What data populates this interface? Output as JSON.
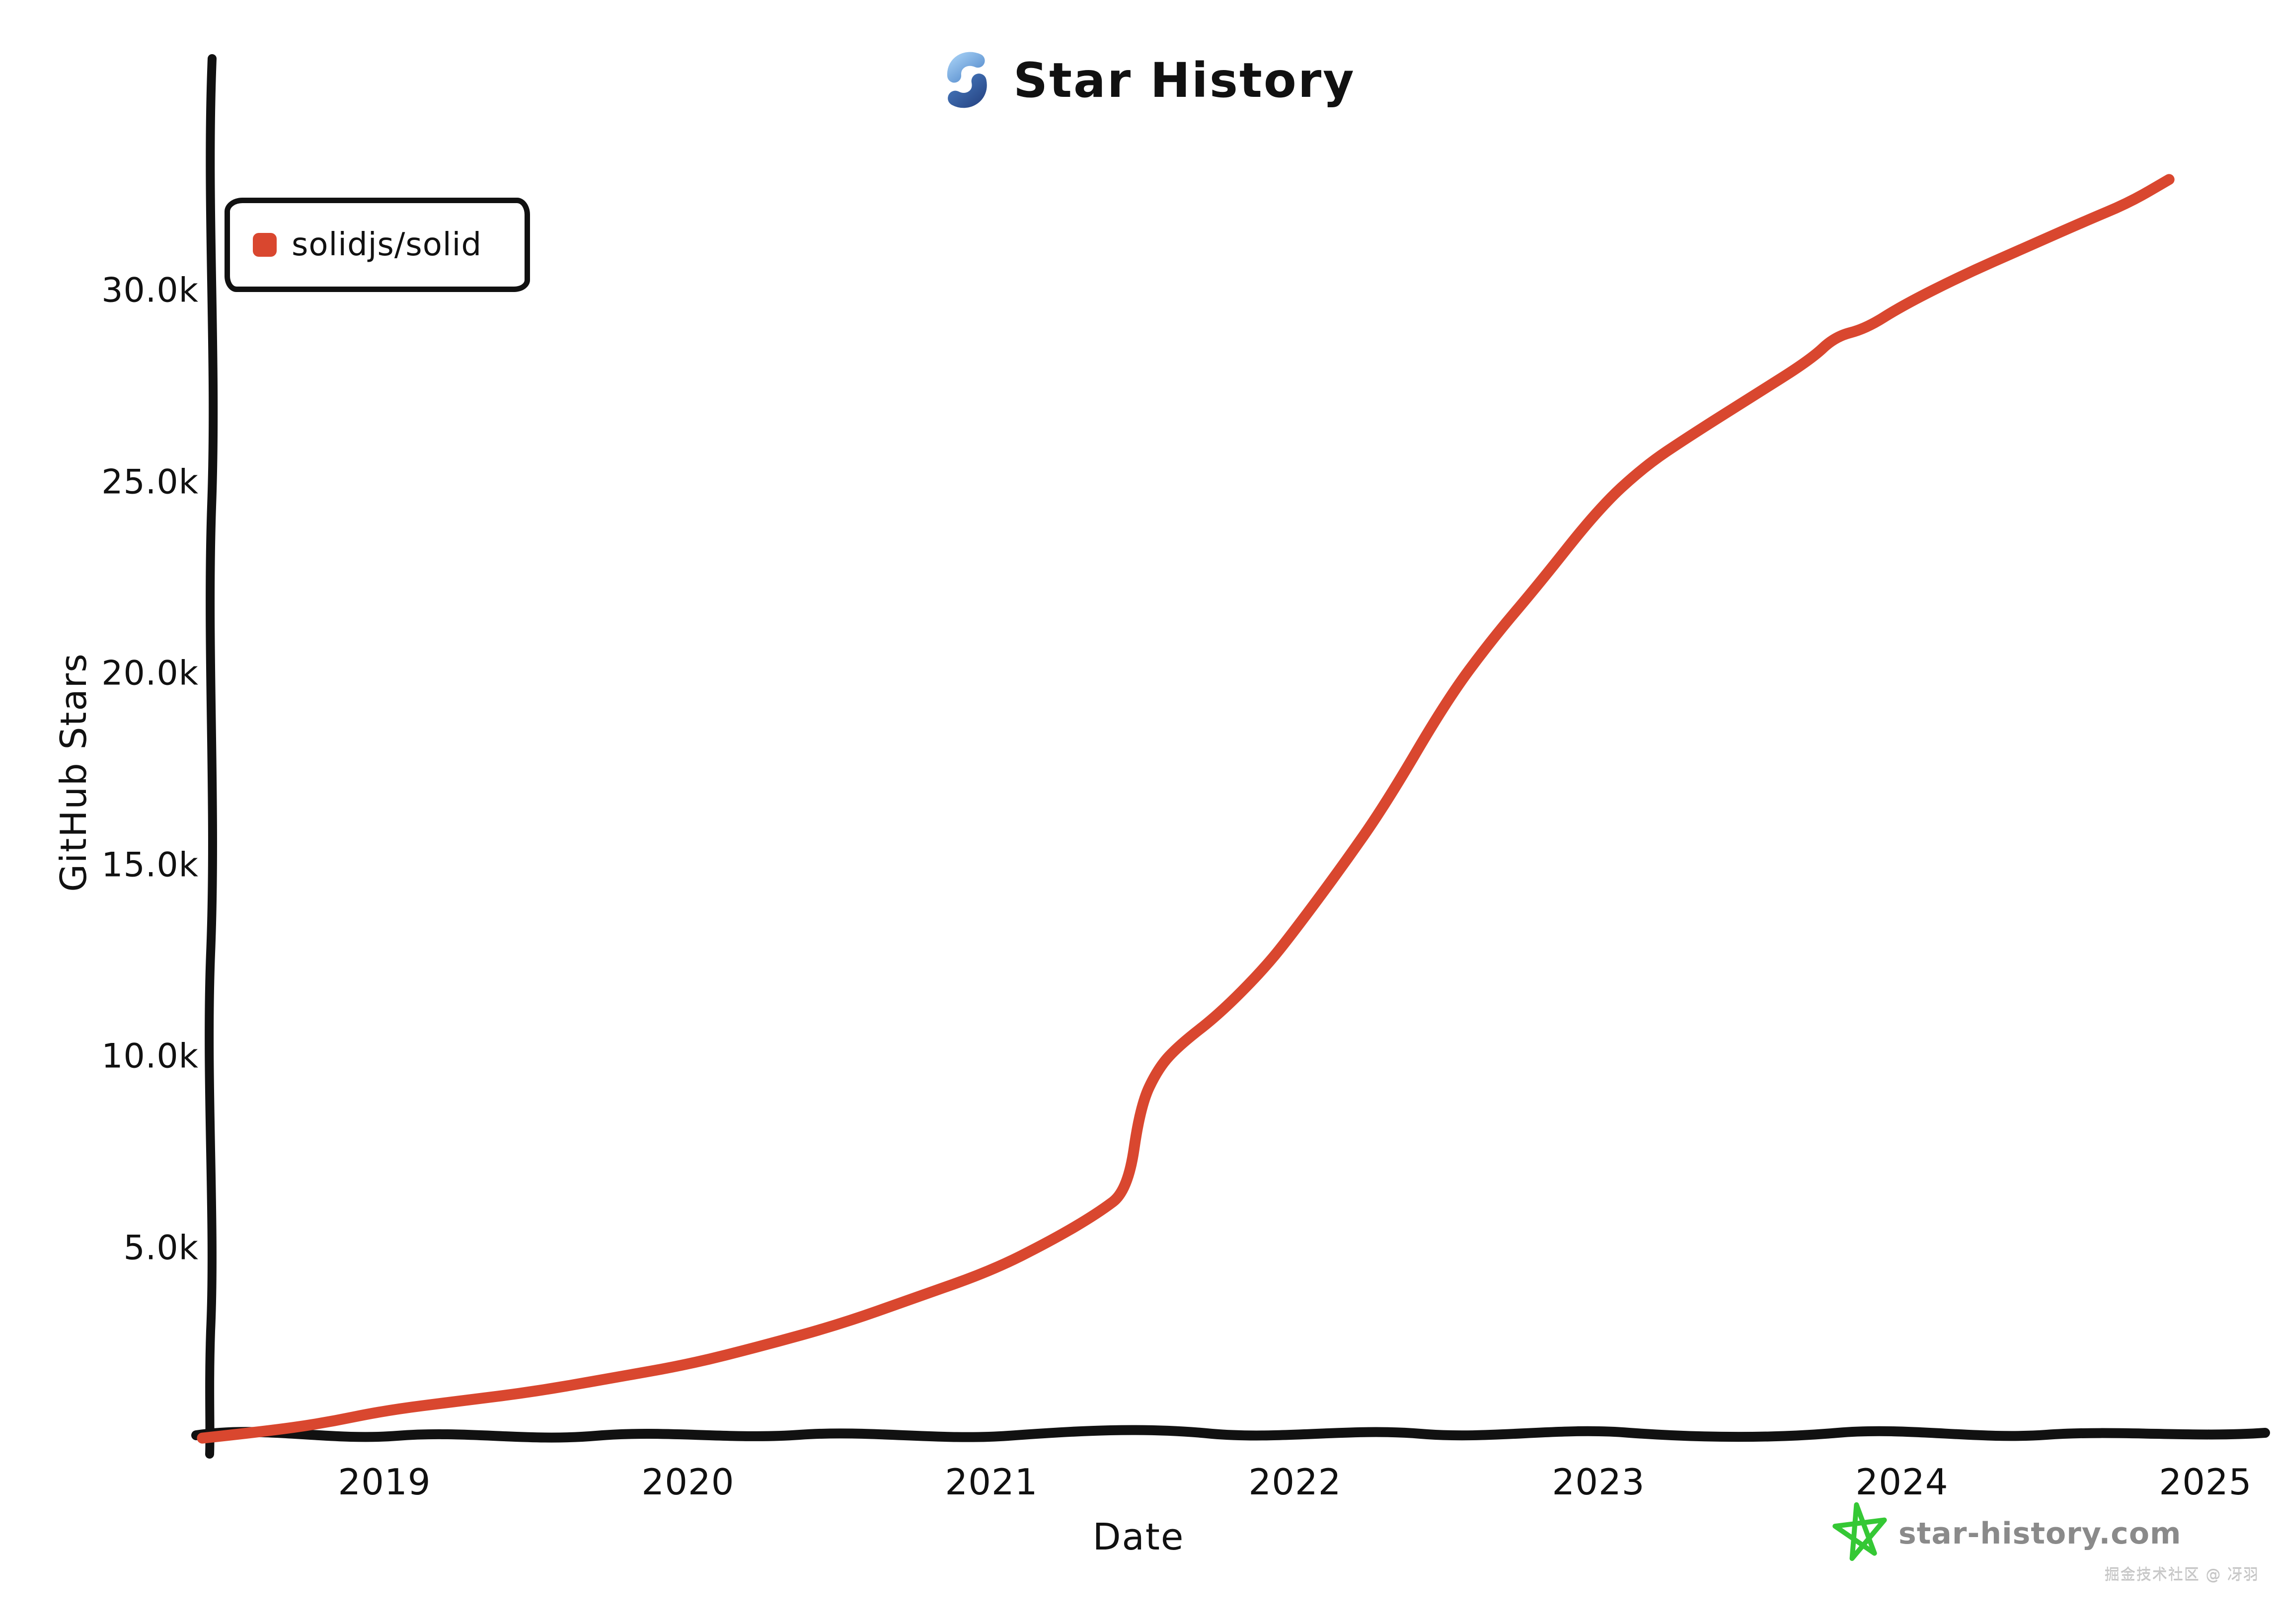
{
  "header": {
    "title": "Star History"
  },
  "legend": {
    "items": [
      {
        "label": "solidjs/solid",
        "color": "#d9472f"
      }
    ]
  },
  "footer": {
    "site": "star-history.com",
    "site_color": "#8a8a8a",
    "star_icon_color": "#35c835",
    "watermark": "掘金技术社区 @ 冴羽"
  },
  "colors": {
    "axis": "#111111",
    "series": "#d9472f",
    "logo_top": "#7fb3e6",
    "logo_bottom": "#33569d"
  },
  "chart_data": {
    "type": "line",
    "title": "Star History",
    "xlabel": "Date",
    "ylabel": "GitHub Stars",
    "grid": false,
    "legend_position": "top-left",
    "ylim": [
      0,
      33500
    ],
    "xlim_years": [
      2018.4,
      2025.1
    ],
    "x_ticks": [
      {
        "label": "2019",
        "year": 2019
      },
      {
        "label": "2020",
        "year": 2020
      },
      {
        "label": "2021",
        "year": 2021
      },
      {
        "label": "2022",
        "year": 2022
      },
      {
        "label": "2023",
        "year": 2023
      },
      {
        "label": "2024",
        "year": 2024
      },
      {
        "label": "2025",
        "year": 2025
      }
    ],
    "y_ticks": [
      {
        "label": "5.0k",
        "value": 5000
      },
      {
        "label": "10.0k",
        "value": 10000
      },
      {
        "label": "15.0k",
        "value": 15000
      },
      {
        "label": "20.0k",
        "value": 20000
      },
      {
        "label": "25.0k",
        "value": 25000
      },
      {
        "label": "30.0k",
        "value": 30000
      }
    ],
    "series": [
      {
        "name": "solidjs/solid",
        "color": "#d9472f",
        "points": [
          [
            2018.4,
            30
          ],
          [
            2018.6,
            200
          ],
          [
            2018.8,
            420
          ],
          [
            2019.0,
            750
          ],
          [
            2019.25,
            1000
          ],
          [
            2019.5,
            1250
          ],
          [
            2019.75,
            1600
          ],
          [
            2020.0,
            1950
          ],
          [
            2020.25,
            2450
          ],
          [
            2020.5,
            3000
          ],
          [
            2020.75,
            3700
          ],
          [
            2021.0,
            4400
          ],
          [
            2021.2,
            5200
          ],
          [
            2021.35,
            5900
          ],
          [
            2021.45,
            6500
          ],
          [
            2021.49,
            8700
          ],
          [
            2021.55,
            9700
          ],
          [
            2021.62,
            10300
          ],
          [
            2021.75,
            11100
          ],
          [
            2021.9,
            12300
          ],
          [
            2022.0,
            13300
          ],
          [
            2022.15,
            14900
          ],
          [
            2022.3,
            16600
          ],
          [
            2022.5,
            19300
          ],
          [
            2022.65,
            20900
          ],
          [
            2022.8,
            22300
          ],
          [
            2023.0,
            24300
          ],
          [
            2023.15,
            25400
          ],
          [
            2023.3,
            26200
          ],
          [
            2023.5,
            27200
          ],
          [
            2023.7,
            28200
          ],
          [
            2023.78,
            28800
          ],
          [
            2023.88,
            29000
          ],
          [
            2024.0,
            29600
          ],
          [
            2024.2,
            30400
          ],
          [
            2024.4,
            31100
          ],
          [
            2024.6,
            31800
          ],
          [
            2024.75,
            32300
          ],
          [
            2024.88,
            32900
          ]
        ]
      }
    ]
  }
}
